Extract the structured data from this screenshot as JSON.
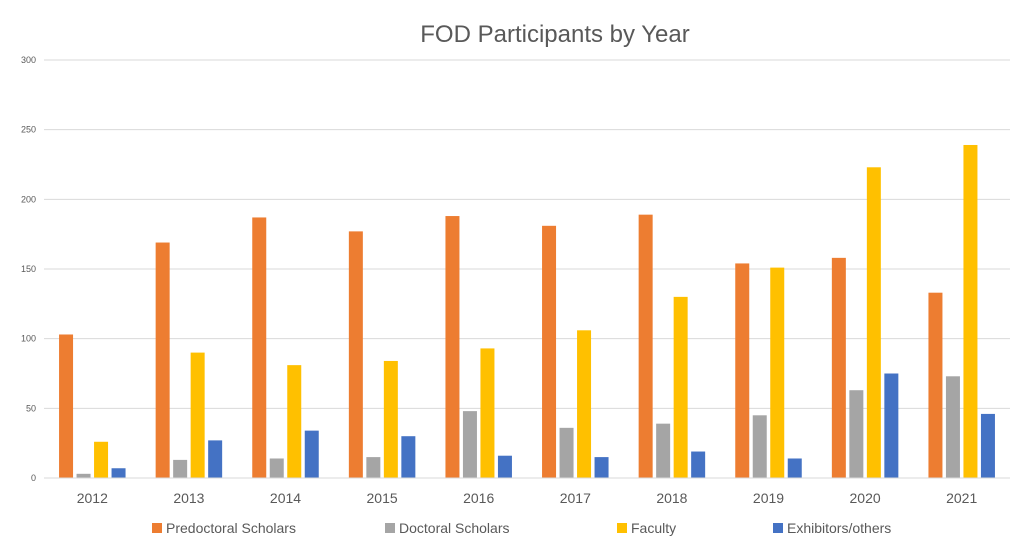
{
  "chart_data": {
    "type": "bar",
    "title": "FOD Participants by Year",
    "xlabel": "",
    "ylabel": "",
    "ylim": [
      0,
      300
    ],
    "yticks": [
      0,
      50,
      100,
      150,
      200,
      250,
      300
    ],
    "grid": true,
    "legend_position": "bottom",
    "categories": [
      "2012",
      "2013",
      "2014",
      "2015",
      "2016",
      "2017",
      "2018",
      "2019",
      "2020",
      "2021"
    ],
    "series": [
      {
        "name": "Predoctoral Scholars",
        "color": "#ED7D31",
        "values": [
          103,
          169,
          187,
          177,
          188,
          181,
          189,
          154,
          158,
          133
        ]
      },
      {
        "name": "Doctoral Scholars",
        "color": "#A5A5A5",
        "values": [
          3,
          13,
          14,
          15,
          48,
          36,
          39,
          45,
          63,
          73
        ]
      },
      {
        "name": "Faculty",
        "color": "#FFC000",
        "values": [
          26,
          90,
          81,
          84,
          93,
          106,
          130,
          151,
          223,
          239
        ]
      },
      {
        "name": "Exhibitors/others",
        "color": "#4472C4",
        "values": [
          7,
          27,
          34,
          30,
          16,
          15,
          19,
          14,
          75,
          46
        ]
      }
    ]
  }
}
